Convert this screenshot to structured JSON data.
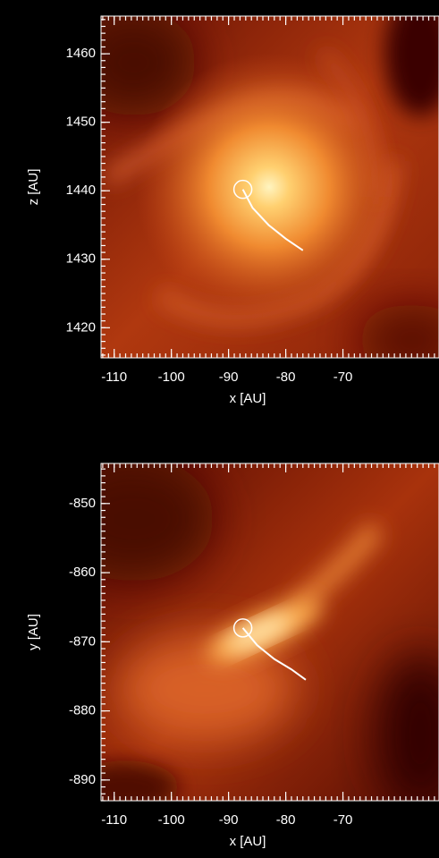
{
  "chart_data": [
    {
      "type": "image",
      "xlabel": "x [AU]",
      "ylabel": "z [AU]",
      "xlim": [
        -112.3,
        -53.2
      ],
      "ylim": [
        1415.6,
        1465.5
      ],
      "xticks": [
        -110,
        -100,
        -90,
        -80,
        -70
      ],
      "yticks": [
        1420,
        1430,
        1440,
        1450,
        1460
      ],
      "trajectory": {
        "x": [
          -87.5,
          -85.8,
          -83,
          -80,
          -77
        ],
        "y": [
          1440.2,
          1437.5,
          1435,
          1433,
          1431.3
        ]
      }
    },
    {
      "type": "image",
      "xlabel": "x [AU]",
      "ylabel": "y [AU]",
      "xlim": [
        -112.3,
        -53.2
      ],
      "ylim": [
        -893,
        -844.2
      ],
      "xticks": [
        -110,
        -100,
        -90,
        -80,
        -70
      ],
      "yticks": [
        -890,
        -880,
        -870,
        -860,
        -850
      ],
      "trajectory": {
        "x": [
          -87.5,
          -85,
          -82,
          -79,
          -76.5
        ],
        "y": [
          -868,
          -870.5,
          -872.5,
          -874,
          -875.5
        ]
      }
    }
  ]
}
